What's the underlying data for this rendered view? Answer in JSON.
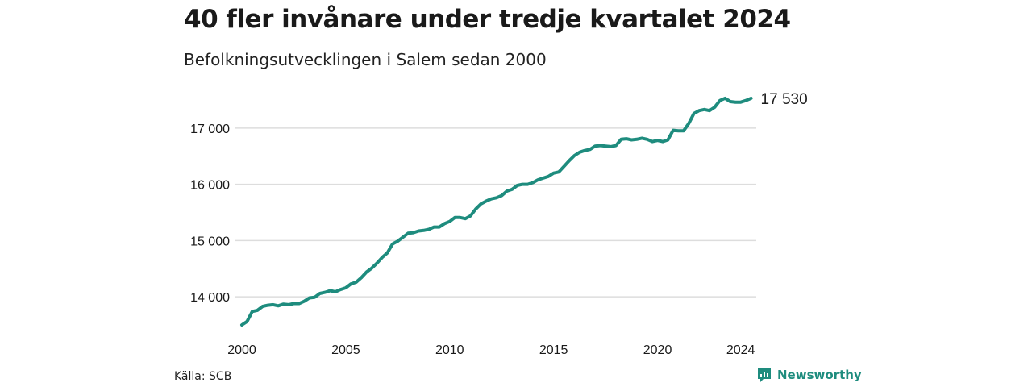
{
  "header": {
    "title": "40 fler invånare under tredje kvartalet 2024",
    "subtitle": "Befolkningsutvecklingen i Salem sedan 2000"
  },
  "footer": {
    "source": "Källa: SCB",
    "brand": "Newsworthy"
  },
  "colors": {
    "line": "#1e8c7e",
    "grid": "#dddddd",
    "brand": "#1e8c7e"
  },
  "chart_data": {
    "type": "line",
    "title": "40 fler invånare under tredje kvartalet 2024",
    "subtitle": "Befolkningsutvecklingen i Salem sedan 2000",
    "xlabel": "",
    "ylabel": "",
    "xlim": [
      2000.0,
      2024.75
    ],
    "ylim": [
      13400,
      17700
    ],
    "x_ticks": [
      {
        "value": 2000,
        "label": "2000"
      },
      {
        "value": 2005,
        "label": "2005"
      },
      {
        "value": 2010,
        "label": "2010"
      },
      {
        "value": 2015,
        "label": "2015"
      },
      {
        "value": 2020,
        "label": "2020"
      },
      {
        "value": 2024,
        "label": "2024"
      }
    ],
    "y_ticks": [
      {
        "value": 14000,
        "label": "14 000"
      },
      {
        "value": 15000,
        "label": "15 000"
      },
      {
        "value": 16000,
        "label": "16 000"
      },
      {
        "value": 17000,
        "label": "17 000"
      }
    ],
    "grid": "horizontal",
    "end_label": "17 530",
    "series": [
      {
        "x": [
          2000.0,
          2000.25,
          2000.5,
          2000.75,
          2001.0,
          2001.25,
          2001.5,
          2001.75,
          2002.0,
          2002.25,
          2002.5,
          2002.75,
          2003.0,
          2003.25,
          2003.5,
          2003.75,
          2004.0,
          2004.25,
          2004.5,
          2004.75,
          2005.0,
          2005.25,
          2005.5,
          2005.75,
          2006.0,
          2006.25,
          2006.5,
          2006.75,
          2007.0,
          2007.25,
          2007.5,
          2007.75,
          2008.0,
          2008.25,
          2008.5,
          2008.75,
          2009.0,
          2009.25,
          2009.5,
          2009.75,
          2010.0,
          2010.25,
          2010.5,
          2010.75,
          2011.0,
          2011.25,
          2011.5,
          2011.75,
          2012.0,
          2012.25,
          2012.5,
          2012.75,
          2013.0,
          2013.25,
          2013.5,
          2013.75,
          2014.0,
          2014.25,
          2014.5,
          2014.75,
          2015.0,
          2015.25,
          2015.5,
          2015.75,
          2016.0,
          2016.25,
          2016.5,
          2016.75,
          2017.0,
          2017.25,
          2017.5,
          2017.75,
          2018.0,
          2018.25,
          2018.5,
          2018.75,
          2019.0,
          2019.25,
          2019.5,
          2019.75,
          2020.0,
          2020.25,
          2020.5,
          2020.75,
          2021.0,
          2021.25,
          2021.5,
          2021.75,
          2022.0,
          2022.25,
          2022.5,
          2022.75,
          2023.0,
          2023.25,
          2023.5,
          2023.75,
          2024.0,
          2024.25,
          2024.5
        ],
        "values": [
          13500,
          13560,
          13740,
          13760,
          13830,
          13850,
          13860,
          13840,
          13870,
          13860,
          13880,
          13880,
          13920,
          13980,
          13990,
          14060,
          14080,
          14110,
          14090,
          14130,
          14160,
          14230,
          14260,
          14340,
          14440,
          14510,
          14600,
          14700,
          14780,
          14940,
          14990,
          15060,
          15130,
          15140,
          15170,
          15180,
          15200,
          15240,
          15240,
          15300,
          15340,
          15410,
          15410,
          15390,
          15440,
          15560,
          15650,
          15700,
          15740,
          15760,
          15800,
          15880,
          15910,
          15980,
          16000,
          16000,
          16030,
          16080,
          16110,
          16140,
          16200,
          16220,
          16320,
          16420,
          16510,
          16570,
          16600,
          16620,
          16680,
          16690,
          16680,
          16670,
          16690,
          16800,
          16810,
          16790,
          16800,
          16820,
          16800,
          16760,
          16780,
          16760,
          16790,
          16960,
          16950,
          16950,
          17080,
          17260,
          17310,
          17330,
          17310,
          17370,
          17490,
          17530,
          17470,
          17460,
          17460,
          17490,
          17530
        ]
      }
    ]
  }
}
